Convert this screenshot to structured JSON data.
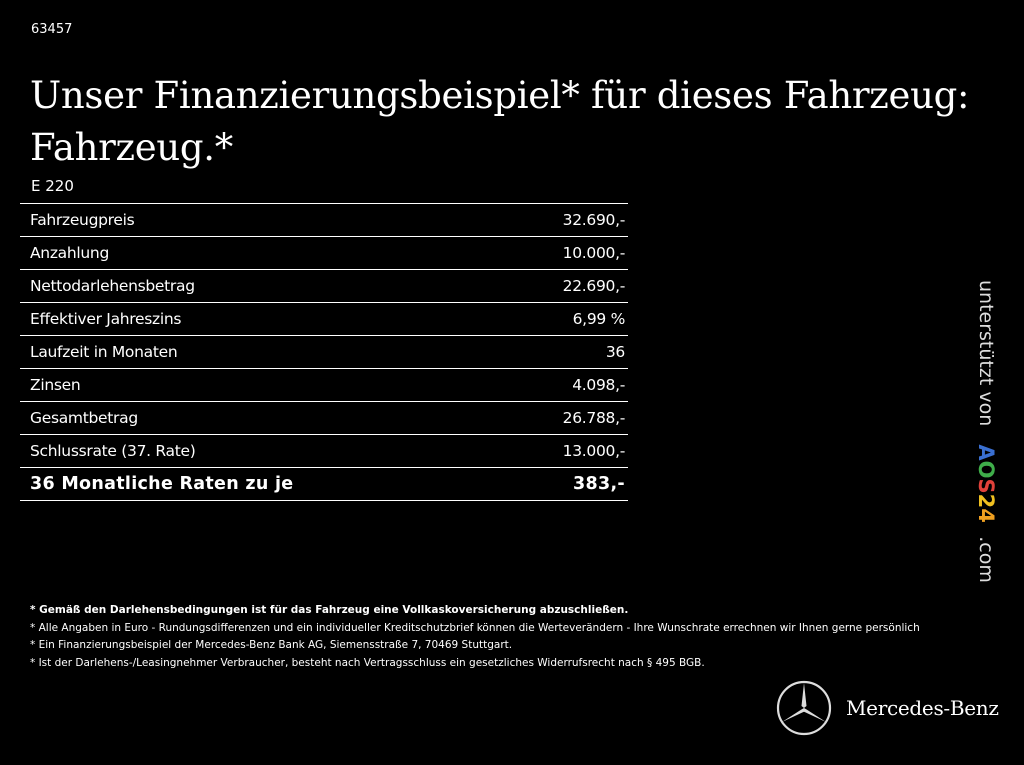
{
  "id": "63457",
  "title": "Unser Finanzierungsbeispiel* für dieses Fahrzeug: Fahrzeug.*",
  "model": "E 220",
  "rows": [
    {
      "label": "Fahrzeugpreis",
      "value": "32.690,-"
    },
    {
      "label": "Anzahlung",
      "value": "10.000,-"
    },
    {
      "label": "Nettodarlehensbetrag",
      "value": "22.690,-"
    },
    {
      "label": "Effektiver Jahreszins",
      "value": "6,99 %"
    },
    {
      "label": "Laufzeit in Monaten",
      "value": "36"
    },
    {
      "label": "Zinsen",
      "value": "4.098,-"
    },
    {
      "label": "Gesamtbetrag",
      "value": "26.788,-"
    },
    {
      "label": "Schlussrate (37. Rate)",
      "value": "13.000,-"
    }
  ],
  "total": {
    "label": "36 Monatliche Raten zu je",
    "value": "383,-"
  },
  "side": {
    "prefix": "unterstützt von",
    "logo": [
      "A",
      "O",
      "S",
      "2",
      "4"
    ],
    "suffix": ".com",
    "logo_colors": [
      "#3a6fd0",
      "#3fae4a",
      "#e0413a",
      "#f0c020",
      "#f0a020"
    ]
  },
  "notes": [
    "* Gemäß den Darlehensbedingungen ist für das Fahrzeug eine Vollkaskoversicherung abzuschließen.",
    "* Alle Angaben in Euro - Rundungsdifferenzen und ein individueller Kreditschutzbrief können die Werteverändern - Ihre Wunschrate errechnen wir Ihnen gerne persönlich",
    "* Ein Finanzierungsbeispiel der Mercedes-Benz Bank AG, Siemensstraße 7, 70469 Stuttgart.",
    "* Ist der Darlehens-/Leasingnehmer Verbraucher, besteht nach Vertragsschluss ein gesetzliches Widerrufsrecht nach § 495 BGB."
  ],
  "brand": "Mercedes-Benz"
}
